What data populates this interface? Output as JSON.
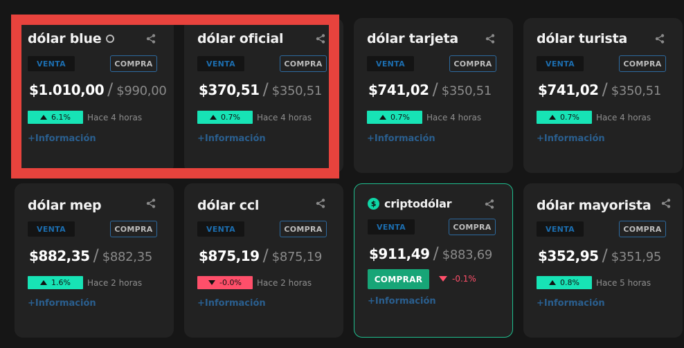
{
  "cards": [
    {
      "title": "dólar blue",
      "venta": "VENTA",
      "compra": "COMPRA",
      "sell": "$1.010,00",
      "buy": "$990,00",
      "change": "6.1%",
      "direction": "up",
      "time": "Hace 4 horas",
      "info": "+Información",
      "title_icon": "fire-icon"
    },
    {
      "title": "dólar oficial",
      "venta": "VENTA",
      "compra": "COMPRA",
      "sell": "$370,51",
      "buy": "$350,51",
      "change": "0.7%",
      "direction": "up",
      "time": "Hace 4 horas",
      "info": "+Información"
    },
    {
      "title": "dólar tarjeta",
      "venta": "VENTA",
      "compra": "COMPRA",
      "sell": "$741,02",
      "buy": "$350,51",
      "change": "0.7%",
      "direction": "up",
      "time": "Hace 4 horas",
      "info": "+Información"
    },
    {
      "title": "dólar turista",
      "venta": "VENTA",
      "compra": "COMPRA",
      "sell": "$741,02",
      "buy": "$350,51",
      "change": "0.7%",
      "direction": "up",
      "time": "Hace 4 horas",
      "info": "+Información"
    },
    {
      "title": "dólar mep",
      "venta": "VENTA",
      "compra": "COMPRA",
      "sell": "$882,35",
      "buy": "$882,35",
      "change": "1.6%",
      "direction": "up",
      "time": "Hace 2 horas",
      "info": "+Información"
    },
    {
      "title": "dólar ccl",
      "venta": "VENTA",
      "compra": "COMPRA",
      "sell": "$875,19",
      "buy": "$875,19",
      "change": "-0.0%",
      "direction": "down",
      "time": "Hace 2 horas",
      "info": "+Información"
    },
    {
      "title": "criptodólar",
      "venta": "VENTA",
      "compra": "COMPRA",
      "sell": "$911,49",
      "buy": "$883,69",
      "change": "-0.1%",
      "direction": "down",
      "comprar": "COMPRAR",
      "info": "+Información",
      "title_icon": "crypto-icon"
    },
    {
      "title": "dólar mayorista",
      "venta": "VENTA",
      "compra": "COMPRA",
      "sell": "$352,95",
      "buy": "$351,95",
      "change": "0.8%",
      "direction": "up",
      "time": "Hace 5 horas",
      "info": "+Información"
    }
  ],
  "colors": {
    "background": "#161616",
    "card": "#222222",
    "positive": "#17e3b5",
    "negative": "#ff4f6a",
    "highlight": "#e8433d",
    "comprar": "#17a577",
    "link": "#2a5f8f"
  }
}
